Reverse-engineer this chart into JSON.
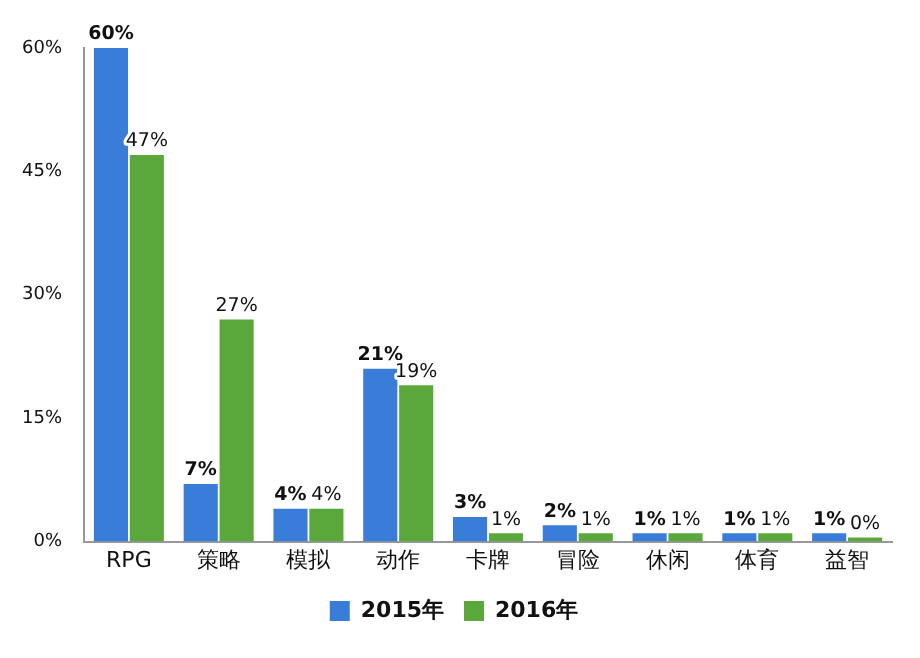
{
  "chart_data": {
    "type": "bar",
    "categories": [
      "RPG",
      "策略",
      "模拟",
      "动作",
      "卡牌",
      "冒险",
      "休闲",
      "体育",
      "益智"
    ],
    "series": [
      {
        "name": "2015年",
        "color": "#3a7dd8",
        "values": [
          60,
          7,
          4,
          21,
          3,
          2,
          1,
          1,
          1
        ],
        "value_labels": [
          "60%",
          "7%",
          "4%",
          "21%",
          "3%",
          "2%",
          "1%",
          "1%",
          "1%"
        ]
      },
      {
        "name": "2016年",
        "color": "#5aa83c",
        "values": [
          47,
          27,
          4,
          19,
          1,
          1,
          1,
          1,
          0
        ],
        "value_labels": [
          "47%",
          "27%",
          "4%",
          "19%",
          "1%",
          "1%",
          "1%",
          "1%",
          "0%"
        ]
      }
    ],
    "ylim": [
      0,
      60
    ],
    "yticks": [
      {
        "value": 0,
        "label": "0%"
      },
      {
        "value": 15,
        "label": "15%"
      },
      {
        "value": 30,
        "label": "30%"
      },
      {
        "value": 45,
        "label": "45%"
      },
      {
        "value": 60,
        "label": "60%"
      }
    ],
    "grid": false,
    "legend": "bottom"
  }
}
